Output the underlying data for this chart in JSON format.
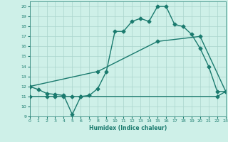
{
  "line1_x": [
    0,
    1,
    2,
    3,
    4,
    5,
    6,
    7,
    8,
    9,
    10,
    11,
    12,
    13,
    14,
    15,
    16,
    17,
    18,
    19,
    20,
    21,
    22,
    23
  ],
  "line1_y": [
    12,
    11.7,
    11.3,
    11.2,
    11.1,
    9.2,
    11.0,
    11.1,
    11.8,
    13.5,
    17.5,
    17.5,
    18.5,
    18.8,
    18.5,
    20.0,
    20.0,
    18.2,
    18.0,
    17.2,
    15.8,
    14.0,
    11.5,
    11.5
  ],
  "line2_x": [
    0,
    8,
    15,
    20,
    23
  ],
  "line2_y": [
    12,
    13.5,
    16.5,
    17.0,
    11.5
  ],
  "line3_x": [
    0,
    2,
    3,
    4,
    5,
    6,
    22,
    23
  ],
  "line3_y": [
    11,
    11,
    11,
    11,
    11,
    11,
    11,
    11.5
  ],
  "color": "#1a7a6e",
  "bg_color": "#cef0e8",
  "grid_color": "#aad4cc",
  "xlabel": "Humidex (Indice chaleur)",
  "xlim": [
    0,
    23
  ],
  "ylim": [
    9,
    20.5
  ],
  "yticks": [
    9,
    10,
    11,
    12,
    13,
    14,
    15,
    16,
    17,
    18,
    19,
    20
  ],
  "xticks": [
    0,
    1,
    2,
    3,
    4,
    5,
    6,
    7,
    8,
    9,
    10,
    11,
    12,
    13,
    14,
    15,
    16,
    17,
    18,
    19,
    20,
    21,
    22,
    23
  ],
  "markersize": 2.5,
  "linewidth": 1.0
}
